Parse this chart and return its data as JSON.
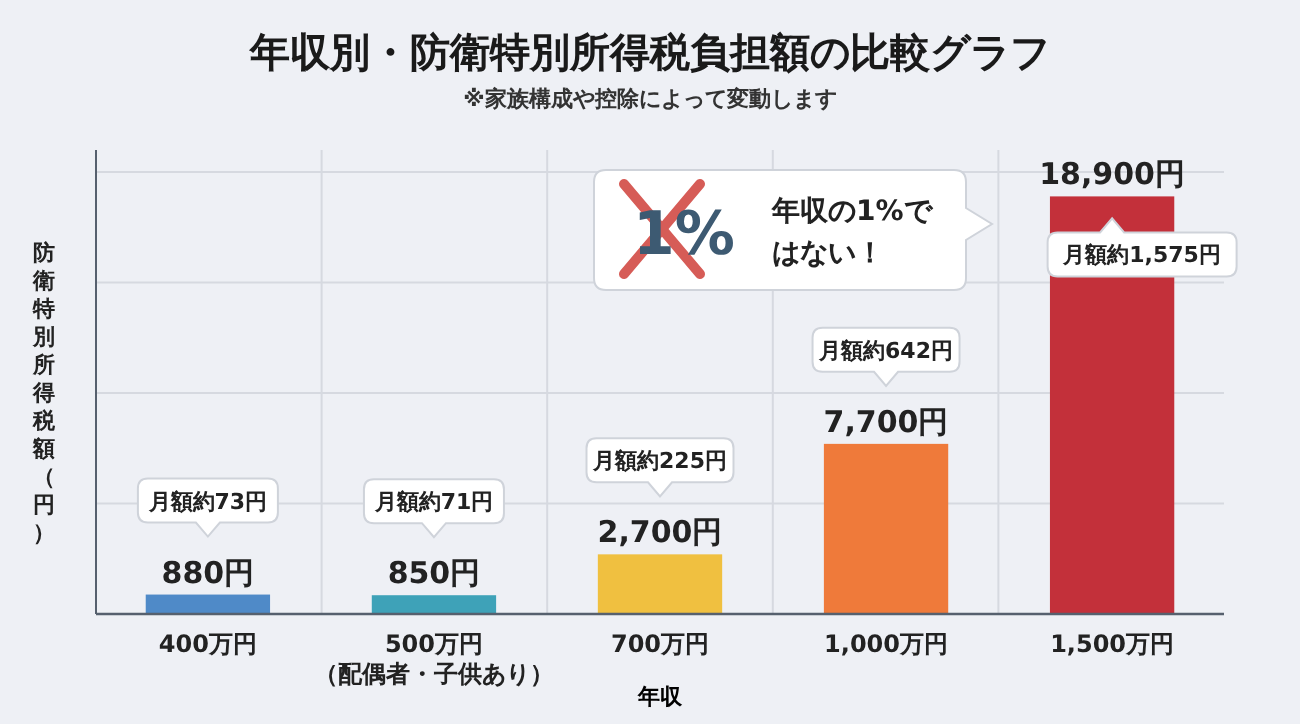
{
  "chart_data": {
    "type": "bar",
    "title": "年収別・防衛特別所得税負担額の比較グラフ",
    "subtitle": "※家族構成や控除によって変動します",
    "xlabel": "年収",
    "ylabel": "防衛特別所得税額（円）",
    "categories": [
      "400万円",
      "500万円（配偶者・子供あり）",
      "700万円",
      "1,000万円",
      "1,500万円"
    ],
    "values": [
      880,
      850,
      2700,
      7700,
      18900
    ],
    "colors": [
      "#4f8ac8",
      "#3ea2b8",
      "#f0c040",
      "#ef7a3a",
      "#c3303a"
    ],
    "value_labels": [
      "880円",
      "850円",
      "2,700円",
      "7,700円",
      "18,900円"
    ],
    "ylim": [
      0,
      21000
    ],
    "yticks": [
      {
        "value": 5000,
        "label": null
      },
      {
        "value": 10000,
        "label": null
      },
      {
        "value": 15000,
        "label": null
      },
      {
        "value": 20000,
        "label": null
      }
    ],
    "grid": true,
    "tick_labels": "x",
    "annotations": [
      "月額約73円",
      "月額約71円",
      "月額約225円",
      "月額約642円",
      "月額約1,575円",
      "1%",
      "年収の1%ではない！"
    ]
  }
}
